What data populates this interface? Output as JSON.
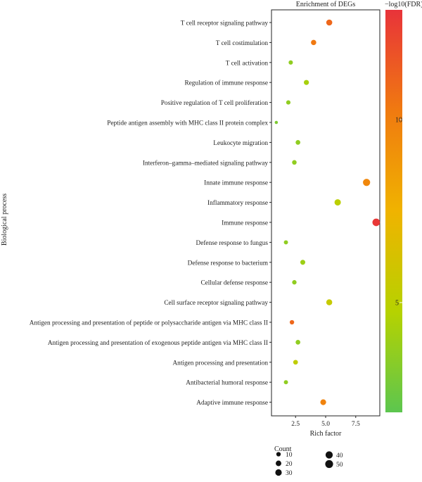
{
  "chart_data": {
    "type": "scatter",
    "title": "Enrichment of DEGs",
    "xlabel": "Rich factor",
    "ylabel": "Biological process",
    "xlim": [
      0.5,
      9.5
    ],
    "x_ticks": [
      2.5,
      5.0,
      7.5
    ],
    "x_tick_labels": [
      "2.5",
      "5.0",
      "7.5"
    ],
    "grid": false,
    "legend_position": "right",
    "color_scale": {
      "label": "−log10(FDR)",
      "min": 2,
      "max": 13,
      "ticks": [
        5,
        10
      ],
      "tick_labels": [
        "5",
        "10"
      ],
      "colors": [
        "#5cc64f",
        "#b6d200",
        "#f0b300",
        "#f07a10",
        "#e8333a"
      ]
    },
    "size_legend": {
      "title": "Count",
      "entries": [
        {
          "label": "10",
          "value": 10
        },
        {
          "label": "20",
          "value": 20
        },
        {
          "label": "30",
          "value": 30
        },
        {
          "label": "40",
          "value": 40
        },
        {
          "label": "50",
          "value": 50
        }
      ]
    },
    "categories": [
      "T cell receptor signaling pathway",
      "T cell costimulation",
      "T cell activation",
      "Regulation of immune response",
      "Positive regulation of T cell proliferation",
      "Peptide antigen assembly with MHC class II protein complex",
      "Leukocyte migration",
      "Interferon–gamma–mediated signaling pathway",
      "Innate immune response",
      "Inflammatory response",
      "Immune response",
      "Defense response to fungus",
      "Defense response to bacterium",
      "Cellular defense response",
      "Cell surface receptor signaling pathway",
      "Antigen processing and presentation of peptide or polysaccharide antigen via MHC class II",
      "Antigen processing and presentation of exogenous peptide antigen via MHC class II",
      "Antigen processing and presentation",
      "Antibacterial humoral response",
      "Adaptive immune response"
    ],
    "points": [
      {
        "term": "T cell receptor signaling pathway",
        "rich_factor": 5.3,
        "neg_log10_fdr": 11.0,
        "count": 25
      },
      {
        "term": "T cell costimulation",
        "rich_factor": 4.0,
        "neg_log10_fdr": 10.3,
        "count": 17
      },
      {
        "term": "T cell activation",
        "rich_factor": 2.1,
        "neg_log10_fdr": 3.6,
        "count": 9
      },
      {
        "term": "Regulation of immune response",
        "rich_factor": 3.4,
        "neg_log10_fdr": 4.3,
        "count": 15
      },
      {
        "term": "Positive regulation of T cell proliferation",
        "rich_factor": 1.9,
        "neg_log10_fdr": 3.6,
        "count": 9
      },
      {
        "term": "Peptide antigen assembly with MHC class II protein complex",
        "rich_factor": 0.9,
        "neg_log10_fdr": 3.0,
        "count": 3
      },
      {
        "term": "Leukocyte migration",
        "rich_factor": 2.7,
        "neg_log10_fdr": 3.6,
        "count": 12
      },
      {
        "term": "Interferon–gamma–mediated signaling pathway",
        "rich_factor": 2.4,
        "neg_log10_fdr": 3.6,
        "count": 11
      },
      {
        "term": "Innate immune response",
        "rich_factor": 8.4,
        "neg_log10_fdr": 9.6,
        "count": 40
      },
      {
        "term": "Inflammatory response",
        "rich_factor": 6.0,
        "neg_log10_fdr": 5.0,
        "count": 28
      },
      {
        "term": "Immune response",
        "rich_factor": 9.2,
        "neg_log10_fdr": 12.8,
        "count": 45
      },
      {
        "term": "Defense response to fungus",
        "rich_factor": 1.7,
        "neg_log10_fdr": 3.6,
        "count": 8
      },
      {
        "term": "Defense response to bacterium",
        "rich_factor": 3.1,
        "neg_log10_fdr": 4.0,
        "count": 14
      },
      {
        "term": "Cellular defense response",
        "rich_factor": 2.4,
        "neg_log10_fdr": 3.6,
        "count": 10
      },
      {
        "term": "Cell surface receptor signaling pathway",
        "rich_factor": 5.3,
        "neg_log10_fdr": 5.5,
        "count": 24
      },
      {
        "term": "Antigen processing and presentation of peptide or polysaccharide antigen via MHC class II",
        "rich_factor": 2.2,
        "neg_log10_fdr": 11.0,
        "count": 10
      },
      {
        "term": "Antigen processing and presentation of exogenous peptide antigen via MHC class II",
        "rich_factor": 2.7,
        "neg_log10_fdr": 3.6,
        "count": 12
      },
      {
        "term": "Antigen processing and presentation",
        "rich_factor": 2.5,
        "neg_log10_fdr": 5.2,
        "count": 12
      },
      {
        "term": "Antibacterial humoral response",
        "rich_factor": 1.7,
        "neg_log10_fdr": 3.6,
        "count": 8
      },
      {
        "term": "Adaptive immune response",
        "rich_factor": 4.8,
        "neg_log10_fdr": 9.8,
        "count": 22
      }
    ]
  }
}
